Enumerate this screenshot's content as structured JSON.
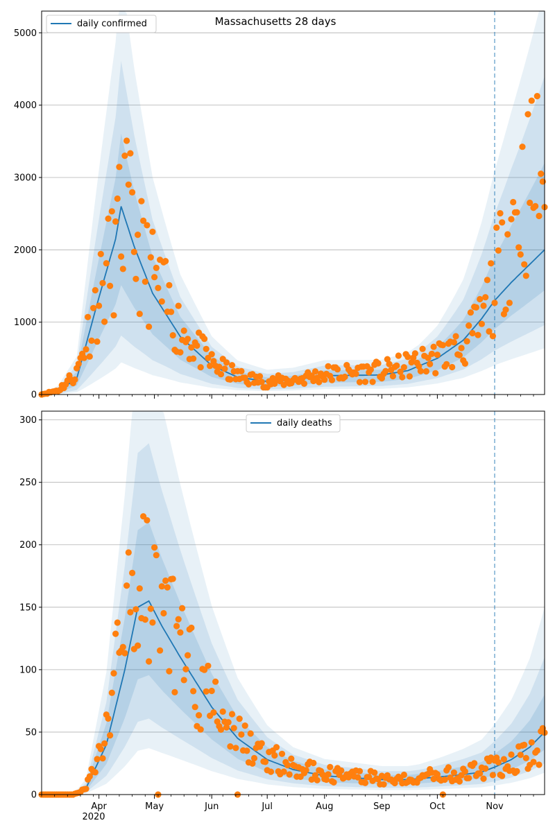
{
  "chart_data": [
    {
      "type": "line",
      "title": "Massachusetts 28 days",
      "legend": {
        "label": "daily confirmed",
        "placement": "top-left"
      },
      "ylim": [
        0,
        5300
      ],
      "yticks": [
        0,
        1000,
        2000,
        3000,
        4000,
        5000
      ],
      "grid": "horizontal",
      "forecast_marker_date": "2020-11-01",
      "x_range": [
        "2020-03-01",
        "2020-11-28"
      ],
      "line_color": "#1f77b4",
      "point_color": "#ff7f0e",
      "band_color": "#1f77b4",
      "series_key_dates": [
        "2020-03-01",
        "2020-03-10",
        "2020-03-20",
        "2020-03-31",
        "2020-04-10",
        "2020-04-13",
        "2020-04-20",
        "2020-04-30",
        "2020-05-15",
        "2020-06-01",
        "2020-06-15",
        "2020-07-01",
        "2020-07-15",
        "2020-08-01",
        "2020-09-01",
        "2020-09-15",
        "2020-10-01",
        "2020-10-15",
        "2020-10-25",
        "2020-11-01",
        "2020-11-10",
        "2020-11-20",
        "2020-11-28"
      ],
      "series_key_values": [
        0,
        50,
        220,
        1250,
        2150,
        2600,
        2050,
        1400,
        800,
        400,
        240,
        180,
        200,
        260,
        270,
        330,
        500,
        750,
        1050,
        1300,
        1550,
        1800,
        2000
      ],
      "observed_key_dates": [
        "2020-03-01",
        "2020-03-10",
        "2020-03-20",
        "2020-03-31",
        "2020-04-10",
        "2020-04-15",
        "2020-04-20",
        "2020-04-30",
        "2020-05-15",
        "2020-06-01",
        "2020-06-15",
        "2020-07-01",
        "2020-07-15",
        "2020-08-01",
        "2020-09-01",
        "2020-09-15",
        "2020-10-01",
        "2020-10-15",
        "2020-10-25",
        "2020-11-01",
        "2020-11-10",
        "2020-11-20",
        "2020-11-28"
      ],
      "observed_key_values": [
        0,
        60,
        300,
        1300,
        2000,
        2600,
        2100,
        1600,
        900,
        420,
        250,
        170,
        200,
        280,
        320,
        400,
        520,
        650,
        1000,
        1500,
        2400,
        2900,
        3200
      ],
      "observed_scatter": 0.45,
      "bands": [
        {
          "key_multipliers_low": [
            0.55,
            0.6,
            0.62,
            0.66,
            0.72
          ],
          "key_multipliers_high": [
            1.45,
            1.35,
            1.3,
            1.25,
            1.6
          ],
          "opacity": 0.15
        },
        {
          "key_multipliers_low": [
            0.25,
            0.35,
            0.4,
            0.45,
            0.48
          ],
          "key_multipliers_high": [
            1.9,
            1.7,
            1.55,
            1.5,
            2.2
          ],
          "opacity": 0.12
        },
        {
          "key_multipliers_low": [
            0.12,
            0.2,
            0.28,
            0.3,
            0.32
          ],
          "key_multipliers_high": [
            2.5,
            2.1,
            1.85,
            1.75,
            2.8
          ],
          "opacity": 0.1
        }
      ],
      "x_ticks": [
        "Apr",
        "May",
        "Jun",
        "Jul",
        "Aug",
        "Sep",
        "Oct",
        "Nov"
      ],
      "x_tick_dates": [
        "2020-04-01",
        "2020-05-01",
        "2020-06-01",
        "2020-07-01",
        "2020-08-01",
        "2020-09-01",
        "2020-10-01",
        "2020-11-01"
      ]
    },
    {
      "type": "line",
      "title": "",
      "legend": {
        "label": "daily deaths",
        "placement": "top-center"
      },
      "ylim": [
        0,
        307
      ],
      "yticks": [
        0,
        50,
        100,
        150,
        200,
        250,
        300
      ],
      "grid": "horizontal",
      "forecast_marker_date": "2020-11-01",
      "x_range": [
        "2020-03-01",
        "2020-11-28"
      ],
      "line_color": "#1f77b4",
      "point_color": "#ff7f0e",
      "band_color": "#1f77b4",
      "series_key_dates": [
        "2020-03-01",
        "2020-03-18",
        "2020-03-25",
        "2020-04-05",
        "2020-04-15",
        "2020-04-22",
        "2020-04-28",
        "2020-05-05",
        "2020-05-15",
        "2020-06-01",
        "2020-06-15",
        "2020-07-01",
        "2020-07-15",
        "2020-08-01",
        "2020-09-01",
        "2020-09-15",
        "2020-10-01",
        "2020-10-15",
        "2020-10-25",
        "2020-11-01",
        "2020-11-10",
        "2020-11-20",
        "2020-11-28"
      ],
      "series_key_values": [
        0,
        0,
        5,
        40,
        100,
        150,
        155,
        135,
        110,
        70,
        45,
        28,
        20,
        15,
        12,
        12,
        14,
        16,
        18,
        22,
        28,
        38,
        50
      ],
      "observed_key_dates": [
        "2020-03-01",
        "2020-03-18",
        "2020-03-25",
        "2020-04-05",
        "2020-04-12",
        "2020-04-20",
        "2020-04-28",
        "2020-05-05",
        "2020-05-15",
        "2020-06-01",
        "2020-06-15",
        "2020-07-01",
        "2020-07-15",
        "2020-08-01",
        "2020-09-01",
        "2020-09-15",
        "2020-10-01",
        "2020-10-15",
        "2020-10-25",
        "2020-11-01",
        "2020-11-10",
        "2020-11-20",
        "2020-11-28"
      ],
      "observed_key_values": [
        0,
        0,
        5,
        50,
        110,
        160,
        160,
        140,
        115,
        70,
        45,
        30,
        22,
        16,
        13,
        13,
        15,
        17,
        20,
        22,
        28,
        30,
        40
      ],
      "observed_scatter": 0.4,
      "bands": [
        {
          "key_multipliers_low": [
            0.6,
            0.62,
            0.65,
            0.7,
            0.72
          ],
          "key_multipliers_high": [
            1.45,
            1.4,
            1.35,
            1.3,
            1.6
          ],
          "opacity": 0.15
        },
        {
          "key_multipliers_low": [
            0.35,
            0.4,
            0.45,
            0.45,
            0.5
          ],
          "key_multipliers_high": [
            1.9,
            1.8,
            1.6,
            1.55,
            2.2
          ],
          "opacity": 0.12
        },
        {
          "key_multipliers_low": [
            0.18,
            0.25,
            0.3,
            0.3,
            0.35
          ],
          "key_multipliers_high": [
            2.6,
            2.3,
            1.9,
            1.9,
            3.0
          ],
          "opacity": 0.1
        }
      ],
      "x_ticks": [
        "Apr",
        "May",
        "Jun",
        "Jul",
        "Aug",
        "Sep",
        "Oct",
        "Nov"
      ],
      "x_tick_dates": [
        "2020-04-01",
        "2020-05-01",
        "2020-06-01",
        "2020-07-01",
        "2020-08-01",
        "2020-09-01",
        "2020-10-01",
        "2020-11-01"
      ],
      "x_year_label": "2020"
    }
  ]
}
